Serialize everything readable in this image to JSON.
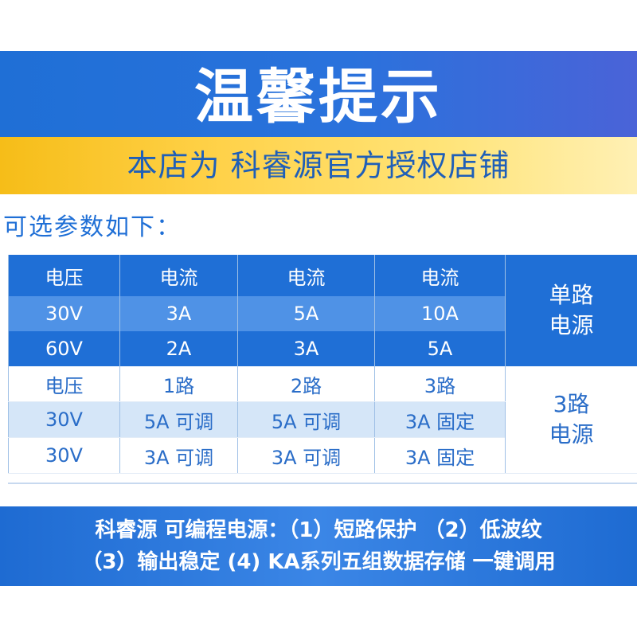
{
  "banner": {
    "title": "温馨提示",
    "subtitle": "本店为 科睿源官方授权店铺"
  },
  "params_title": "可选参数如下：",
  "table": {
    "single_channel": {
      "header": [
        "电压",
        "电流",
        "电流",
        "电流"
      ],
      "rows": [
        [
          "30V",
          "3A",
          "5A",
          "10A"
        ],
        [
          "60V",
          "2A",
          "3A",
          "5A"
        ]
      ],
      "label_line1": "单路",
      "label_line2": "电源"
    },
    "three_channel": {
      "header": [
        "电压",
        "1路",
        "2路",
        "3路"
      ],
      "rows": [
        [
          "30V",
          "5A 可调",
          "5A 可调",
          "3A 固定"
        ],
        [
          "30V",
          "3A 可调",
          "3A 可调",
          "3A 固定"
        ]
      ],
      "label_line1": "3路",
      "label_line2": "电源"
    }
  },
  "footer": {
    "line1": "科睿源 可编程电源：（1）短路保护 （2）低波纹",
    "line2": "（3）输出稳定 (4) KA系列五组数据存储 一键调用"
  }
}
